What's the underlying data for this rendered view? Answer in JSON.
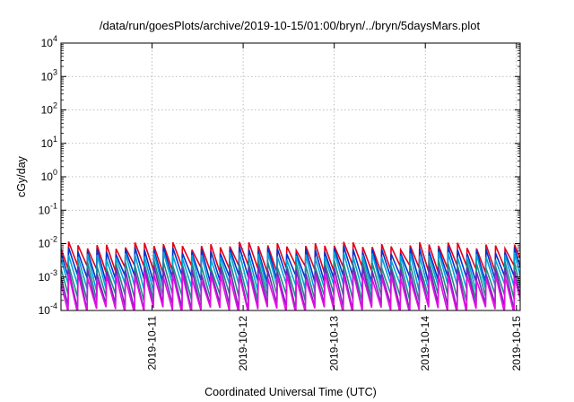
{
  "chart_data": {
    "type": "line",
    "title": "/data/run/goesPlots/archive/2019-10-15/01:00/bryn/../bryn/5daysMars.plot",
    "xlabel": "Coordinated Universal Time (UTC)",
    "ylabel": "cGy/day",
    "yscale": "log",
    "ylim_exponents": [
      -4,
      4
    ],
    "yticks": [
      {
        "base": "10",
        "exp": "4"
      },
      {
        "base": "10",
        "exp": "3"
      },
      {
        "base": "10",
        "exp": "2"
      },
      {
        "base": "10",
        "exp": "1"
      },
      {
        "base": "10",
        "exp": "0"
      },
      {
        "base": "10",
        "exp": "-1"
      },
      {
        "base": "10",
        "exp": "-2"
      },
      {
        "base": "10",
        "exp": "-3"
      },
      {
        "base": "10",
        "exp": "-4"
      }
    ],
    "xlim": [
      "2019-10-10T00:00",
      "2019-10-15T01:00"
    ],
    "xticks": [
      {
        "date": "2019-10-11T00:00",
        "label": "2019-10-11"
      },
      {
        "date": "2019-10-12T00:00",
        "label": "2019-10-12"
      },
      {
        "date": "2019-10-13T00:00",
        "label": "2019-10-13"
      },
      {
        "date": "2019-10-14T00:00",
        "label": "2019-10-14"
      },
      {
        "date": "2019-10-15T00:00",
        "label": "2019-10-15"
      }
    ],
    "grid": true,
    "sawtooth_period_hours": 2.5,
    "series": [
      {
        "color": "#e0001a",
        "peak": 0.009,
        "trough": 0.0018
      },
      {
        "color": "#0033cc",
        "peak": 0.0065,
        "trough": 0.0009
      },
      {
        "color": "#00a2d8",
        "peak": 0.0045,
        "trough": 0.0005
      },
      {
        "color": "#1e8a84",
        "peak": 0.0025,
        "trough": 0.00025
      },
      {
        "color": "#7722bb",
        "peak": 0.0017,
        "trough": 0.00013
      },
      {
        "color": "#e010e0",
        "peak": 0.0011,
        "trough": 0.0001
      }
    ]
  }
}
